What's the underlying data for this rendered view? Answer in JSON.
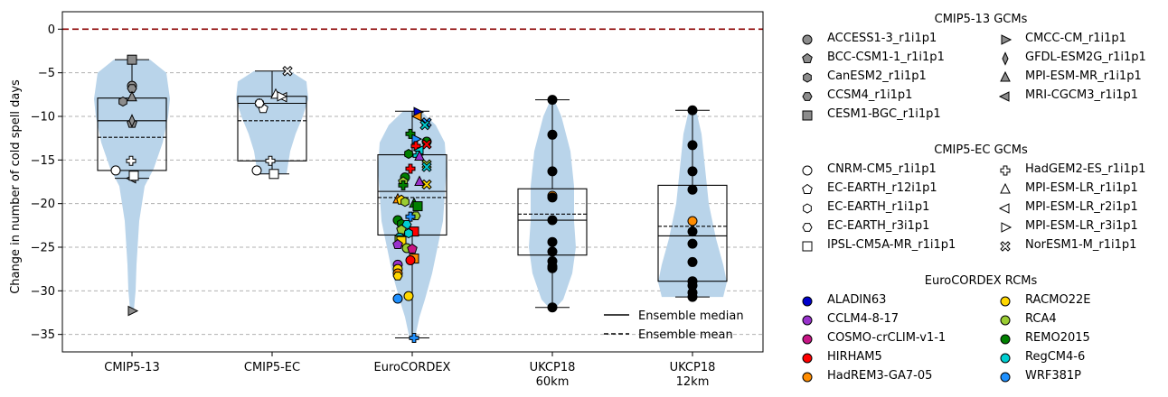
{
  "chart_data": {
    "type": "violin",
    "ylabel": "Change in number of cold spell days",
    "ylim": [
      -37,
      2
    ],
    "yticks": [
      0,
      -5,
      -10,
      -15,
      -20,
      -25,
      -30,
      -35
    ],
    "ytick_labels": [
      "0",
      "−5",
      "−10",
      "−15",
      "−20",
      "−25",
      "−30",
      "−35"
    ],
    "grid": "horizontal dashed",
    "reference_line": 0,
    "categories": [
      {
        "label": "CMIP5-13",
        "label2": ""
      },
      {
        "label": "CMIP5-EC",
        "label2": ""
      },
      {
        "label": "EuroCORDEX",
        "label2": ""
      },
      {
        "label": "UKCP18",
        "label2": "60km"
      },
      {
        "label": "UKCP18",
        "label2": "12km"
      }
    ],
    "stats": [
      {
        "min": -32.3,
        "q1": -16.2,
        "median": -10.5,
        "mean": -12.4,
        "q3": -7.9,
        "max": -3.5,
        "whisker_low": -17.1,
        "whisker_high": -3.5
      },
      {
        "min": -16.6,
        "q1": -15.1,
        "median": -8.5,
        "mean": -10.5,
        "q3": -7.7,
        "max": -4.8,
        "whisker_low": -16.6,
        "whisker_high": -4.8
      },
      {
        "min": -35.4,
        "q1": -23.6,
        "median": -18.6,
        "mean": -19.3,
        "q3": -14.4,
        "max": -9.4,
        "whisker_low": -35.4,
        "whisker_high": -9.4
      },
      {
        "min": -31.9,
        "q1": -25.9,
        "median": -21.9,
        "mean": -21.2,
        "q3": -18.3,
        "max": -8.1,
        "whisker_low": -31.9,
        "whisker_high": -8.1
      },
      {
        "min": -30.7,
        "q1": -28.9,
        "median": -23.7,
        "mean": -22.6,
        "q3": -17.9,
        "max": -9.3,
        "whisker_low": -30.7,
        "whisker_high": -9.3
      }
    ],
    "violin_color": "#b9d4ea",
    "cmip5_13_points": [
      {
        "model": "ACCESS1-3_r1i1p1",
        "value": -6.5
      },
      {
        "model": "BCC-CSM1-1_r1i1p1",
        "value": -10.8
      },
      {
        "model": "CanESM2_r1i1p1",
        "value": -8.3
      },
      {
        "model": "CCSM4_r1i1p1",
        "value": -6.8
      },
      {
        "model": "CESM1-BGC_r1i1p1",
        "value": -3.5
      },
      {
        "model": "CMCC-CM_r1i1p1",
        "value": -32.3
      },
      {
        "model": "GFDL-ESM2G_r1i1p1",
        "value": -10.5
      },
      {
        "model": "MPI-ESM-MR_r1i1p1",
        "value": -7.8
      },
      {
        "model": "MRI-CGCM3_r1i1p1",
        "value": -17.1
      }
    ],
    "cmip5_ec_points": [
      {
        "model": "CNRM-CM5_r1i1p1",
        "value": -16.2
      },
      {
        "model": "EC-EARTH_r12i1p1",
        "value": -9.1
      },
      {
        "model": "EC-EARTH_r1i1p1",
        "value": -8.5
      },
      {
        "model": "EC-EARTH_r3i1p1",
        "value": -8.5
      },
      {
        "model": "IPSL-CM5A-MR_r1i1p1",
        "value": -16.6
      },
      {
        "model": "HadGEM2-ES_r1i1p1",
        "value": -15.1
      },
      {
        "model": "MPI-ESM-LR_r1i1p1",
        "value": -7.5
      },
      {
        "model": "MPI-ESM-LR_r2i1p1",
        "value": -7.8
      },
      {
        "model": "MPI-ESM-LR_r3i1p1",
        "value": -7.7
      },
      {
        "model": "NorESM1-M_r1i1p1",
        "value": -4.8
      }
    ],
    "cmip5_13_extra_points": [
      {
        "model": "",
        "value": -15.1
      },
      {
        "model": "",
        "value": -16.2
      },
      {
        "model": "",
        "value": -16.8
      }
    ],
    "eurocordex_points": [
      {
        "rcm": "ALADIN63",
        "gcm": "MPI-ESM-LR_r3i1p1",
        "value": -9.5
      },
      {
        "rcm": "HadREM3-GA7-05",
        "gcm": "MPI-ESM-LR_r2i1p1",
        "value": -10.0
      },
      {
        "rcm": "WRF381P",
        "gcm": "NorESM1-M_r1i1p1",
        "value": -10.7
      },
      {
        "rcm": "RegCM4-6",
        "gcm": "NorESM1-M_r1i1p1",
        "value": -11.0
      },
      {
        "rcm": "REMO2015",
        "gcm": "HadGEM2-ES_r1i1p1",
        "value": -12.0
      },
      {
        "rcm": "WRF381P",
        "gcm": "MPI-ESM-LR_r3i1p1",
        "value": -12.6
      },
      {
        "rcm": "REMO2015",
        "gcm": "CNRM-CM5_r1i1p1",
        "value": -12.9
      },
      {
        "rcm": "HIRHAM5",
        "gcm": "NorESM1-M_r1i1p1",
        "value": -13.2
      },
      {
        "rcm": "HIRHAM5",
        "gcm": "HadGEM2-ES_r1i1p1",
        "value": -13.4
      },
      {
        "rcm": "RegCM4-6",
        "gcm": "MPI-ESM-LR_r2i1p1",
        "value": -13.9
      },
      {
        "rcm": "REMO2015",
        "gcm": "EC-EARTH_r1i1p1",
        "value": -14.3
      },
      {
        "rcm": "RegCM4-6",
        "gcm": "HadGEM2-ES_r1i1p1",
        "value": -14.5
      },
      {
        "rcm": "CCLM4-8-17",
        "gcm": "MPI-ESM-LR_r1i1p1",
        "value": -14.6
      },
      {
        "rcm": "RCA4",
        "gcm": "NorESM1-M_r1i1p1",
        "value": -15.5
      },
      {
        "rcm": "RegCM4-6",
        "gcm": "NorESM1-M_r1i1p1",
        "value": -15.8
      },
      {
        "rcm": "HIRHAM5",
        "gcm": "HadGEM2-ES_r1i1p1",
        "value": -16.0
      },
      {
        "rcm": "REMO2015",
        "gcm": "CNRM-CM5_r1i1p1",
        "value": -17.0
      },
      {
        "rcm": "RCA4",
        "gcm": "EC-EARTH_r12i1p1",
        "value": -17.5
      },
      {
        "rcm": "CCLM4-8-17",
        "gcm": "MPI-ESM-LR_r1i1p1",
        "value": -17.5
      },
      {
        "rcm": "RACMO22E",
        "gcm": "NorESM1-M_r1i1p1",
        "value": -17.8
      },
      {
        "rcm": "REMO2015",
        "gcm": "HadGEM2-ES_r1i1p1",
        "value": -17.9
      },
      {
        "rcm": "HadREM3-GA7-05",
        "gcm": "MPI-ESM-LR_r1i1p1",
        "value": -19.5
      },
      {
        "rcm": "RACMO22E",
        "gcm": "EC-EARTH_r12i1p1",
        "value": -19.6
      },
      {
        "rcm": "RCA4",
        "gcm": "EC-EARTH_r1i1p1",
        "value": -19.8
      },
      {
        "rcm": "REMO2015",
        "gcm": "MPI-ESM-LR_r1i1p1",
        "value": -20.0
      },
      {
        "rcm": "REMO2015",
        "gcm": "IPSL-CM5A-MR_r1i1p1",
        "value": -20.3
      },
      {
        "rcm": "RCA4",
        "gcm": "EC-EARTH_r3i1p1",
        "value": -21.4
      },
      {
        "rcm": "WRF381P",
        "gcm": "HadGEM2-ES_r1i1p1",
        "value": -21.5
      },
      {
        "rcm": "REMO2015",
        "gcm": "CNRM-CM5_r1i1p1",
        "value": -21.9
      },
      {
        "rcm": "REMO2015",
        "gcm": "EC-EARTH_r1i1p1",
        "value": -22.3
      },
      {
        "rcm": "RegCM4-6",
        "gcm": "EC-EARTH_r3i1p1",
        "value": -22.4
      },
      {
        "rcm": "RCA4",
        "gcm": "EC-EARTH_r12i1p1",
        "value": -23.0
      },
      {
        "rcm": "HIRHAM5",
        "gcm": "IPSL-CM5A-MR_r1i1p1",
        "value": -23.2
      },
      {
        "rcm": "RegCM4-6",
        "gcm": "EC-EARTH_r1i1p1",
        "value": -23.4
      },
      {
        "rcm": "RegCM4-6",
        "gcm": "CNRM-CM5_r1i1p1",
        "value": -23.9
      },
      {
        "rcm": "RCA4",
        "gcm": "IPSL-CM5A-MR_r1i1p1",
        "value": -24.2
      },
      {
        "rcm": "RACMO22E",
        "gcm": "IPSL-CM5A-MR_r1i1p1",
        "value": -24.3
      },
      {
        "rcm": "CCLM4-8-17",
        "gcm": "EC-EARTH_r12i1p1",
        "value": -24.7
      },
      {
        "rcm": "RCA4",
        "gcm": "CNRM-CM5_r1i1p1",
        "value": -25.1
      },
      {
        "rcm": "COSMO-crCLIM-v1-1",
        "gcm": "EC-EARTH_r12i1p1",
        "value": -25.2
      },
      {
        "rcm": "HadREM3-GA7-05",
        "gcm": "IPSL-CM5A-MR_r1i1p1",
        "value": -26.3
      },
      {
        "rcm": "HIRHAM5",
        "gcm": "CNRM-CM5_r1i1p1",
        "value": -26.5
      },
      {
        "rcm": "CCLM4-8-17",
        "gcm": "CNRM-CM5_r1i1p1",
        "value": -27.0
      },
      {
        "rcm": "RACMO22E",
        "gcm": "CNRM-CM5_r1i1p1",
        "value": -27.5
      },
      {
        "rcm": "HadREM3-GA7-05",
        "gcm": "CNRM-CM5_r1i1p1",
        "value": -28.0
      },
      {
        "rcm": "RACMO22E",
        "gcm": "EC-EARTH_r3i1p1",
        "value": -28.3
      },
      {
        "rcm": "RACMO22E",
        "gcm": "CNRM-CM5_r1i1p1",
        "value": -30.6
      },
      {
        "rcm": "WRF381P",
        "gcm": "CNRM-CM5_r1i1p1",
        "value": -30.9
      },
      {
        "rcm": "WRF381P",
        "gcm": "HadGEM2-ES_r1i1p1",
        "value": -35.4
      }
    ],
    "ukcp60_points": [
      -8.1,
      -12.1,
      -16.3,
      -19.1,
      -19.3,
      -21.9,
      -24.4,
      -25.5,
      -26.6,
      -27.2,
      -27.4,
      -31.9
    ],
    "ukcp60_highlight": -19.1,
    "ukcp12_points": [
      -9.3,
      -13.3,
      -16.3,
      -18.4,
      -22.0,
      -23.2,
      -24.6,
      -26.7,
      -28.9,
      -29.4,
      -30.2,
      -30.7
    ],
    "ukcp12_highlight": -22.0,
    "legend_box": {
      "median_label": "Ensemble median",
      "mean_label": "Ensemble mean"
    },
    "legend_groups": [
      {
        "title": "CMIP5-13 GCMs",
        "items": [
          {
            "label": "ACCESS1-3_r1i1p1",
            "marker": "circle",
            "fill": "#8c8c8c"
          },
          {
            "label": "BCC-CSM1-1_r1i1p1",
            "marker": "pentagon",
            "fill": "#8c8c8c"
          },
          {
            "label": "CanESM2_r1i1p1",
            "marker": "hexagon",
            "fill": "#8c8c8c"
          },
          {
            "label": "CCSM4_r1i1p1",
            "marker": "hexagon2",
            "fill": "#8c8c8c"
          },
          {
            "label": "CESM1-BGC_r1i1p1",
            "marker": "square",
            "fill": "#8c8c8c"
          },
          {
            "label": "CMCC-CM_r1i1p1",
            "marker": "tri-right",
            "fill": "#8c8c8c"
          },
          {
            "label": "GFDL-ESM2G_r1i1p1",
            "marker": "thin-diamond",
            "fill": "#8c8c8c"
          },
          {
            "label": "MPI-ESM-MR_r1i1p1",
            "marker": "tri-up",
            "fill": "#8c8c8c"
          },
          {
            "label": "MRI-CGCM3_r1i1p1",
            "marker": "tri-left",
            "fill": "#8c8c8c"
          }
        ]
      },
      {
        "title": "CMIP5-EC GCMs",
        "items": [
          {
            "label": "CNRM-CM5_r1i1p1",
            "marker": "circle",
            "fill": "#ffffff"
          },
          {
            "label": "EC-EARTH_r12i1p1",
            "marker": "pentagon",
            "fill": "#ffffff"
          },
          {
            "label": "EC-EARTH_r1i1p1",
            "marker": "hexagon",
            "fill": "#ffffff"
          },
          {
            "label": "EC-EARTH_r3i1p1",
            "marker": "hexagon2",
            "fill": "#ffffff"
          },
          {
            "label": "IPSL-CM5A-MR_r1i1p1",
            "marker": "square",
            "fill": "#ffffff"
          },
          {
            "label": "HadGEM2-ES_r1i1p1",
            "marker": "plus",
            "fill": "#ffffff"
          },
          {
            "label": "MPI-ESM-LR_r1i1p1",
            "marker": "tri-up",
            "fill": "#ffffff"
          },
          {
            "label": "MPI-ESM-LR_r2i1p1",
            "marker": "tri-left",
            "fill": "#ffffff"
          },
          {
            "label": "MPI-ESM-LR_r3i1p1",
            "marker": "tri-right",
            "fill": "#ffffff"
          },
          {
            "label": "NorESM1-M_r1i1p1",
            "marker": "x",
            "fill": "#ffffff"
          }
        ]
      },
      {
        "title": "EuroCORDEX RCMs",
        "items": [
          {
            "label": "ALADIN63",
            "marker": "circle",
            "fill": "#0000cc"
          },
          {
            "label": "CCLM4-8-17",
            "marker": "circle",
            "fill": "#9932cc"
          },
          {
            "label": "COSMO-crCLIM-v1-1",
            "marker": "circle",
            "fill": "#c71585"
          },
          {
            "label": "HIRHAM5",
            "marker": "circle",
            "fill": "#ff0000"
          },
          {
            "label": "HadREM3-GA7-05",
            "marker": "circle",
            "fill": "#ff8c00"
          },
          {
            "label": "RACMO22E",
            "marker": "circle",
            "fill": "#ffd700"
          },
          {
            "label": "RCA4",
            "marker": "circle",
            "fill": "#9acd32"
          },
          {
            "label": "REMO2015",
            "marker": "circle",
            "fill": "#008000"
          },
          {
            "label": "RegCM4-6",
            "marker": "circle",
            "fill": "#00ced1"
          },
          {
            "label": "WRF381P",
            "marker": "circle",
            "fill": "#1e90ff"
          }
        ]
      }
    ]
  }
}
